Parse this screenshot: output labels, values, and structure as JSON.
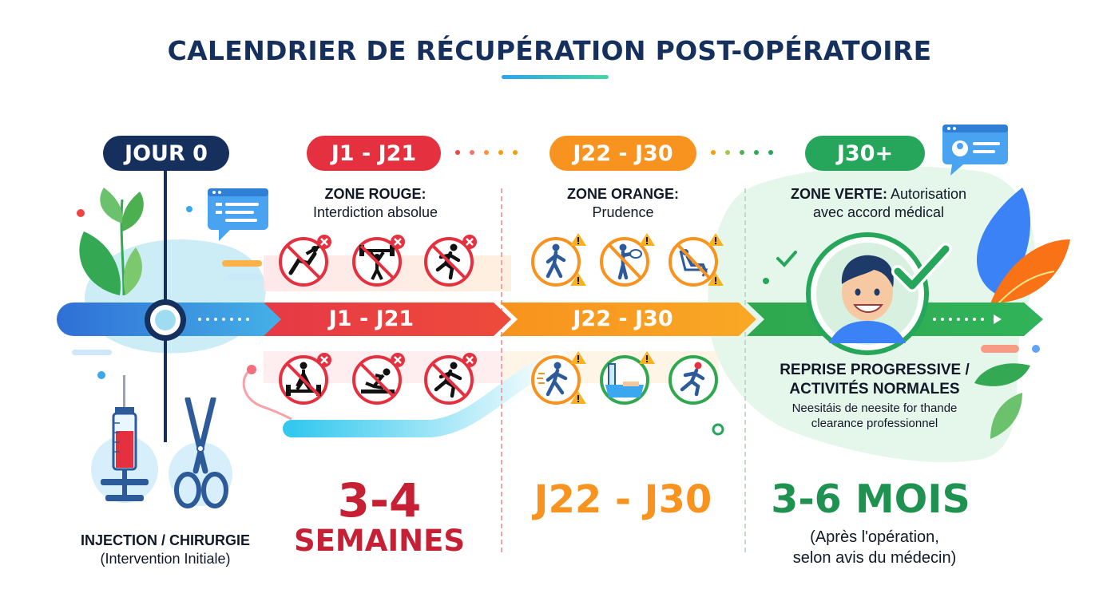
{
  "title": "CALENDRIER DE RÉCUPÉRATION POST-OPÉRATOIRE",
  "colors": {
    "navy": "#16305e",
    "red": "#e5313f",
    "orange": "#f7931e",
    "green": "#25a65a",
    "blue": "#1f6fd6"
  },
  "stages": [
    {
      "pill": "JOUR 0"
    },
    {
      "pill": "J1 - J21",
      "zone_title": "ZONE ROUGE:",
      "zone_desc": "Interdiction absolue",
      "band": "J1 - J21",
      "duration_line1": "3-4",
      "duration_line2": "SEMAINES"
    },
    {
      "pill": "J22 - J30",
      "zone_title": "ZONE ORANGE:",
      "zone_desc": "Prudence",
      "band": "J22 - J30",
      "duration_line1": "J22 - J30"
    },
    {
      "pill": "J30+",
      "zone_title": "ZONE VERTE:",
      "zone_desc_inline": "Autorisation",
      "zone_desc": "avec accord médical",
      "duration_line1": "3-6 MOIS",
      "note_line1": "(Après l'opération,",
      "note_line2": "selon avis du médecin)"
    }
  ],
  "day0_caption_line1": "INJECTION / CHIRURGIE",
  "day0_caption_line2": "(Intervention Initiale)",
  "green_block": {
    "heading_line1": "REPRISE PROGRESSIVE /",
    "heading_line2": "ACTIVITÉS NORMALES",
    "body_line1": "Neesitáis de neesite for thande",
    "body_line2": "clearance professionnel"
  },
  "icons": {
    "red_top": [
      "no-weightlifting-icon",
      "no-barbell-icon",
      "no-running-icon"
    ],
    "red_bottom": [
      "no-deadlift-icon",
      "no-situps-icon",
      "no-sprint-icon"
    ],
    "orange_top": [
      "caution-walking-icon",
      "caution-drinking-icon",
      "caution-reclining-icon"
    ],
    "orange_bottom": [
      "caution-brisk-walk-icon",
      "caution-bath-icon",
      "running-icon"
    ]
  }
}
